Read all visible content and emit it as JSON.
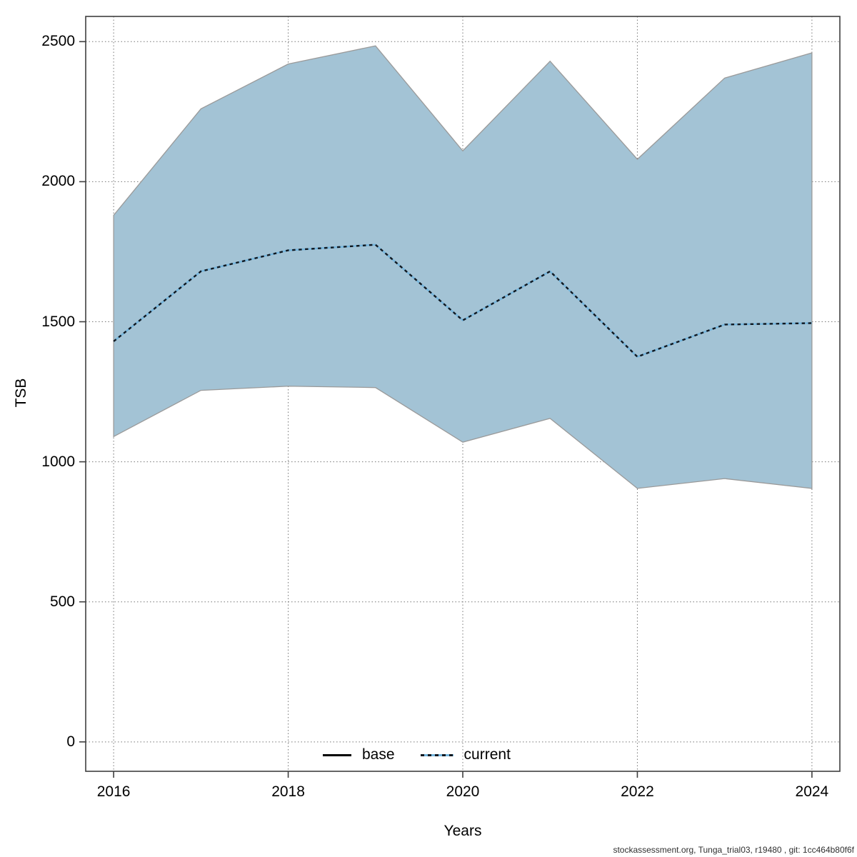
{
  "footer": "stockassessment.org, Tunga_trial03, r19480 , git: 1cc464b80f6f",
  "legend": {
    "items": [
      {
        "label": "base",
        "line_style": "solid",
        "color": "#000000"
      },
      {
        "label": "current",
        "line_style": "dotted",
        "color": "#74b5dd"
      }
    ],
    "position": "bottom-center-inside"
  },
  "chart_data": {
    "type": "area",
    "title": "",
    "xlabel": "Years",
    "ylabel": "TSB",
    "x": [
      2016,
      2017,
      2018,
      2019,
      2020,
      2021,
      2022,
      2023,
      2024
    ],
    "series": [
      {
        "name": "current",
        "values": [
          1430,
          1680,
          1755,
          1775,
          1505,
          1680,
          1375,
          1490,
          1495
        ]
      }
    ],
    "band": {
      "name": "confidence-band",
      "upper": [
        1880,
        2260,
        2420,
        2485,
        2110,
        2430,
        2080,
        2370,
        2460
      ],
      "lower": [
        1090,
        1255,
        1270,
        1265,
        1070,
        1155,
        905,
        940,
        905
      ]
    },
    "xticks": [
      2016,
      2018,
      2020,
      2022,
      2024
    ],
    "yticks": [
      0,
      500,
      1000,
      1500,
      2000,
      2500
    ],
    "xlim": [
      2015.68,
      2024.32
    ],
    "ylim": [
      -105,
      2590
    ],
    "grid": "dotted",
    "legend_position": "bottom",
    "colors": {
      "band_fill": "#a3c3d5",
      "band_edge": "#9a9a9a",
      "line_dash_dark": "#101820",
      "line_dash_blue": "#74b5dd",
      "gridline": "#777777",
      "plot_border": "#3f3f3f",
      "tick": "#3f3f3f"
    }
  }
}
